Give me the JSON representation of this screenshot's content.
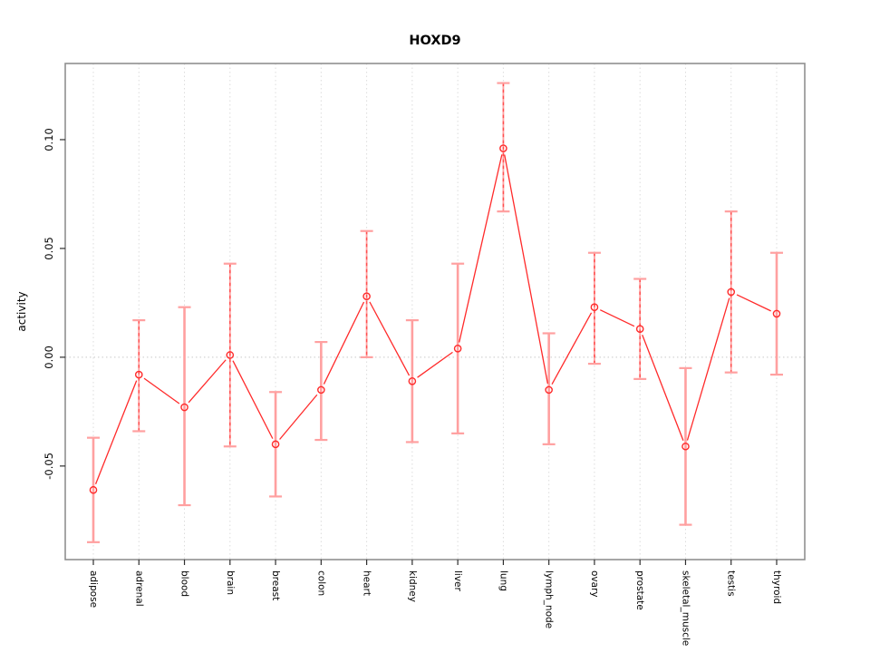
{
  "figure": {
    "title": "HOXD9"
  },
  "chart_data": {
    "type": "line",
    "title": "HOXD9",
    "xlabel": "",
    "ylabel": "activity",
    "categories": [
      "adipose",
      "adrenal",
      "blood",
      "brain",
      "breast",
      "colon",
      "heart",
      "kidney",
      "liver",
      "lung",
      "lymph_node",
      "ovary",
      "prostate",
      "skeletal_muscle",
      "testis",
      "thyroid"
    ],
    "series": [
      {
        "values": [
          -0.061,
          -0.008,
          -0.023,
          0.001,
          -0.04,
          -0.015,
          0.028,
          -0.011,
          0.004,
          0.096,
          -0.015,
          0.023,
          0.013,
          -0.041,
          0.03,
          0.02
        ],
        "ci_low": [
          -0.085,
          -0.034,
          -0.068,
          -0.041,
          -0.064,
          -0.038,
          0.0,
          -0.039,
          -0.035,
          0.067,
          -0.04,
          -0.003,
          -0.01,
          -0.077,
          -0.007,
          -0.008
        ],
        "ci_high": [
          -0.037,
          0.017,
          0.023,
          0.043,
          -0.016,
          0.007,
          0.058,
          0.017,
          0.043,
          0.126,
          0.011,
          0.048,
          0.036,
          -0.005,
          0.067,
          0.048
        ],
        "error_bar_style": [
          "solid",
          "dashed",
          "solid",
          "dashed",
          "solid",
          "solid",
          "dashed",
          "solid",
          "solid",
          "dashed",
          "solid",
          "dashed",
          "dashed",
          "solid",
          "dashed",
          "solid"
        ]
      }
    ],
    "yticks": [
      -0.05,
      0.0,
      0.05,
      0.1
    ],
    "ytick_labels": [
      "-0.05",
      "0.00",
      "0.05",
      "0.10"
    ],
    "ylim": [
      -0.093,
      0.135
    ],
    "grid": {
      "vertical": "dotted line at every category",
      "horizontal": "dotted line at zero only"
    },
    "legend": "none",
    "marker": "open-circle",
    "line_type": "points-connected-with-gaps",
    "colors": {
      "line": "#ff2a2a",
      "marker": "#ff2a2a",
      "error_bar": "#ffa0a0",
      "error_bar_dashed": "#ff4f4f",
      "grid": "#dcdcdc",
      "zero_line": "#c8c8c8",
      "frame": "#8f8f8f",
      "tick": "#2e2e2e",
      "text": "#000000",
      "background": "#ffffff"
    }
  }
}
